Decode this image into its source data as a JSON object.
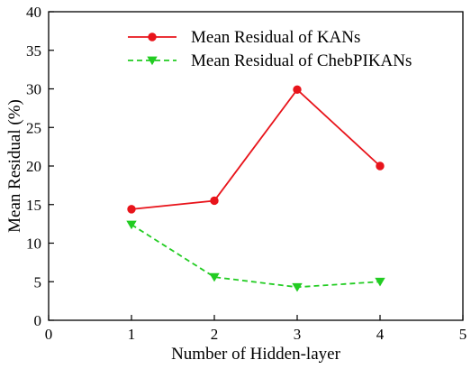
{
  "chart_data": {
    "type": "line",
    "title": "",
    "xlabel": "Number of Hidden-layer",
    "ylabel": "Mean Residual (%)",
    "xlim": [
      0,
      5
    ],
    "ylim": [
      0,
      40
    ],
    "xticks": [
      0,
      1,
      2,
      3,
      4,
      5
    ],
    "yticks": [
      0,
      5,
      10,
      15,
      20,
      25,
      30,
      35,
      40
    ],
    "grid": false,
    "legend_position": "top-center",
    "series": [
      {
        "name": "Mean Residual of KANs",
        "color": "#e8141b",
        "line_style": "solid",
        "marker": "circle",
        "x": [
          1,
          2,
          3,
          4
        ],
        "y": [
          14.4,
          15.5,
          29.9,
          20.0
        ]
      },
      {
        "name": "Mean Residual of ChebPIKANs",
        "color": "#22cc22",
        "line_style": "dashed",
        "marker": "triangle-down",
        "x": [
          1,
          2,
          3,
          4
        ],
        "y": [
          12.4,
          5.6,
          4.3,
          5.0
        ]
      }
    ]
  }
}
